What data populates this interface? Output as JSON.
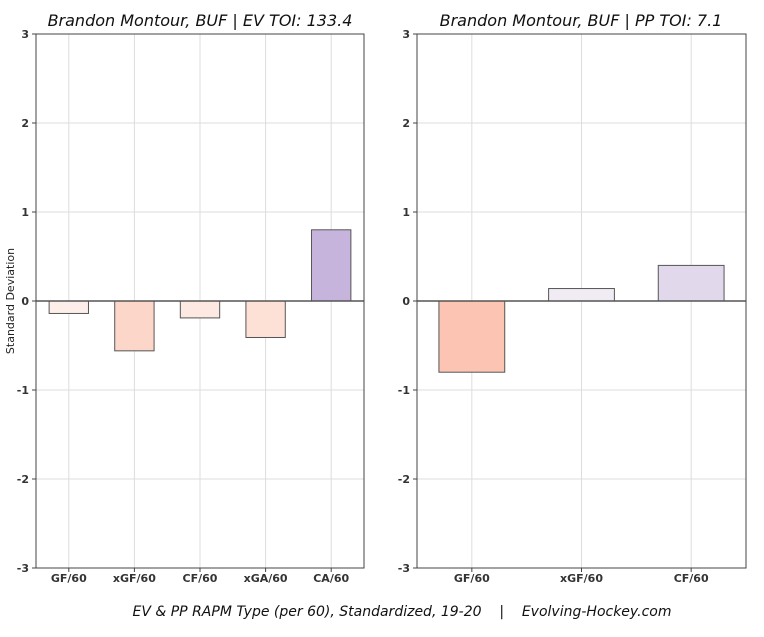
{
  "chart_data": [
    {
      "type": "bar",
      "title": "Brandon Montour, BUF  |  EV TOI: 133.4",
      "ylabel": "Standard Deviation",
      "categories": [
        "GF/60",
        "xGF/60",
        "CF/60",
        "xGA/60",
        "CA/60"
      ],
      "values": [
        -0.14,
        -0.56,
        -0.19,
        -0.41,
        0.8
      ],
      "colors": [
        "#fdeeea",
        "#fdd6ca",
        "#fde8e2",
        "#fde0d6",
        "#c6b4dd"
      ],
      "ylim": [
        -3,
        3
      ],
      "yticks": [
        "-3",
        "-2",
        "-1",
        "0",
        "1",
        "2",
        "3"
      ],
      "grid": true
    },
    {
      "type": "bar",
      "title": "Brandon Montour, BUF  |  PP TOI: 7.1",
      "categories": [
        "GF/60",
        "xGF/60",
        "CF/60"
      ],
      "values": [
        -0.8,
        0.14,
        0.4
      ],
      "colors": [
        "#fcc4b2",
        "#f1ecf4",
        "#e1d8ec"
      ],
      "ylim": [
        -3,
        3
      ],
      "yticks": [
        "-3",
        "-2",
        "-1",
        "0",
        "1",
        "2",
        "3"
      ],
      "grid": true
    }
  ],
  "caption": "EV & PP RAPM Type (per 60), Standardized, 19-20    |    Evolving-Hockey.com"
}
